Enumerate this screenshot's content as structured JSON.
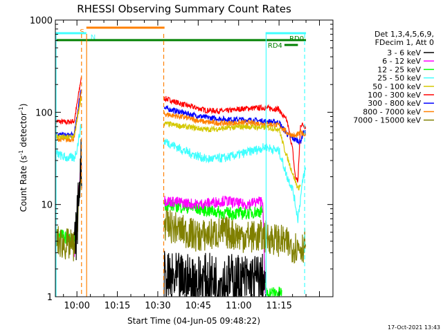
{
  "chart_data": {
    "type": "line",
    "title": "RHESSI Observing Summary Count Rates",
    "xlabel": "Start Time (04-Jun-05 09:48:22)",
    "ylabel_main": "Count Rate (s",
    "ylabel_sup1": "-1",
    "ylabel_mid": " detector",
    "ylabel_sup2": "-1",
    "ylabel_end": ")",
    "xlim_min": [
      -8,
      95
    ],
    "ylim_log": [
      1,
      1000
    ],
    "y_ticks": [
      {
        "v": 1,
        "label": "1"
      },
      {
        "v": 10,
        "label": "10"
      },
      {
        "v": 100,
        "label": "100"
      },
      {
        "v": 1000,
        "label": "1000"
      }
    ],
    "x_ticks": [
      {
        "t": 0,
        "label": "10:00"
      },
      {
        "t": 15,
        "label": "10:15"
      },
      {
        "t": 30,
        "label": "10:30"
      },
      {
        "t": 45,
        "label": "10:45"
      },
      {
        "t": 60,
        "label": "11:00"
      },
      {
        "t": 75,
        "label": "11:15"
      }
    ],
    "legend_header": [
      "Det 1,3,4,5,6,9,",
      "FDecim 1, Att 0"
    ],
    "legend": [
      {
        "label": "3 - 6 keV",
        "color": "#000000"
      },
      {
        "label": "6 - 12 keV",
        "color": "#ff00ff"
      },
      {
        "label": "12 - 25 keV",
        "color": "#00ff00"
      },
      {
        "label": "25 - 50 keV",
        "color": "#40ffff"
      },
      {
        "label": "50 - 100 keV",
        "color": "#d4c800"
      },
      {
        "label": "100 - 300 keV",
        "color": "#ff0000"
      },
      {
        "label": "300 - 800 keV",
        "color": "#0000ff"
      },
      {
        "label": "800 - 7000 keV",
        "color": "#ff8000"
      },
      {
        "label": "7000 - 15000 keV",
        "color": "#808000"
      }
    ],
    "flags": [
      {
        "label": "S",
        "color": "#ff8000",
        "t0": 3.5,
        "t1": 32.5,
        "y": 40
      },
      {
        "label": "N",
        "color": "#40ffff",
        "t0": -8,
        "t1": 3.5,
        "y": 48
      },
      {
        "label": "",
        "color": "#40ffff",
        "t0": 70,
        "t1": 85,
        "y": 48
      },
      {
        "label": "RD0",
        "color": "#008000",
        "t0": -8,
        "t1": 85,
        "y": 58
      },
      {
        "label": "RD4",
        "color": "#008000",
        "t0": 77,
        "t1": 82,
        "y": 65
      }
    ],
    "vlines": [
      {
        "t": -8.2,
        "color": "#40ffff",
        "dash": false
      },
      {
        "t": 1.7,
        "color": "#ff8000",
        "dash": true
      },
      {
        "t": 3.6,
        "color": "#ff8000",
        "dash": false
      },
      {
        "t": 32.2,
        "color": "#ff8000",
        "dash": true
      },
      {
        "t": 70.2,
        "color": "#40ffff",
        "dash": false
      },
      {
        "t": 84.5,
        "color": "#40ffff",
        "dash": true
      }
    ],
    "series": [
      {
        "name": "100 - 300 keV",
        "color": "#ff0000",
        "noise": 0.03,
        "points": [
          [
            -8,
            80
          ],
          [
            -4,
            78
          ],
          [
            -1,
            80
          ],
          [
            0,
            120
          ],
          [
            1.5,
            230
          ],
          [
            33,
            140
          ],
          [
            40,
            120
          ],
          [
            48,
            105
          ],
          [
            55,
            103
          ],
          [
            62,
            110
          ],
          [
            70,
            112
          ],
          [
            75,
            108
          ],
          [
            76,
            95
          ],
          [
            78,
            80
          ],
          [
            80,
            40
          ],
          [
            81,
            20
          ],
          [
            82,
            18
          ],
          [
            83,
            75
          ],
          [
            85,
            70
          ]
        ]
      },
      {
        "name": "300 - 800 keV",
        "color": "#0000ff",
        "noise": 0.03,
        "points": [
          [
            -8,
            58
          ],
          [
            -4,
            56
          ],
          [
            -1,
            57
          ],
          [
            0,
            90
          ],
          [
            1.5,
            180
          ],
          [
            33,
            110
          ],
          [
            40,
            98
          ],
          [
            48,
            88
          ],
          [
            55,
            84
          ],
          [
            62,
            83
          ],
          [
            70,
            80
          ],
          [
            75,
            78
          ],
          [
            76,
            70
          ],
          [
            78,
            58
          ],
          [
            80,
            52
          ],
          [
            83,
            48
          ],
          [
            84,
            60
          ],
          [
            85,
            60
          ]
        ]
      },
      {
        "name": "800 - 7000 keV",
        "color": "#ff8000",
        "noise": 0.03,
        "points": [
          [
            -8,
            52
          ],
          [
            -4,
            50
          ],
          [
            -1,
            52
          ],
          [
            0,
            80
          ],
          [
            1.5,
            160
          ],
          [
            33,
            95
          ],
          [
            40,
            88
          ],
          [
            48,
            78
          ],
          [
            55,
            76
          ],
          [
            62,
            77
          ],
          [
            70,
            75
          ],
          [
            75,
            72
          ],
          [
            76,
            68
          ],
          [
            78,
            60
          ],
          [
            81,
            55
          ],
          [
            83,
            60
          ],
          [
            85,
            58
          ]
        ]
      },
      {
        "name": "50 - 100 keV",
        "color": "#d4c800",
        "noise": 0.03,
        "points": [
          [
            -8,
            55
          ],
          [
            -4,
            53
          ],
          [
            -1,
            55
          ],
          [
            0,
            80
          ],
          [
            1.5,
            140
          ],
          [
            33,
            75
          ],
          [
            40,
            70
          ],
          [
            48,
            65
          ],
          [
            55,
            67
          ],
          [
            62,
            70
          ],
          [
            70,
            68
          ],
          [
            75,
            66
          ],
          [
            77,
            40
          ],
          [
            80,
            22
          ],
          [
            81,
            18
          ],
          [
            82,
            15
          ],
          [
            83,
            16
          ]
        ]
      },
      {
        "name": "25 - 50 keV",
        "color": "#40ffff",
        "noise": 0.05,
        "points": [
          [
            -8,
            36
          ],
          [
            -4,
            32
          ],
          [
            -1,
            32
          ],
          [
            0,
            40
          ],
          [
            1.5,
            70
          ],
          [
            33,
            48
          ],
          [
            40,
            38
          ],
          [
            48,
            31
          ],
          [
            55,
            32
          ],
          [
            62,
            36
          ],
          [
            70,
            42
          ],
          [
            75,
            38
          ],
          [
            78,
            20
          ],
          [
            80,
            15
          ],
          [
            82,
            7
          ],
          [
            84,
            20
          ],
          [
            85,
            25
          ]
        ]
      },
      {
        "name": "12 - 25 keV",
        "color": "#00ff00",
        "noise": 0.07,
        "points": [
          [
            -8,
            5
          ],
          [
            -1,
            4
          ],
          [
            1.5,
            20
          ],
          [
            33,
            10
          ],
          [
            45,
            9
          ],
          [
            55,
            8
          ],
          [
            62,
            8
          ],
          [
            69,
            8.5
          ],
          [
            70,
            1.1
          ],
          [
            75,
            1.1
          ],
          [
            76,
            1.1
          ]
        ]
      },
      {
        "name": "6 - 12 keV",
        "color": "#ff00ff",
        "noise": 0.06,
        "points": [
          [
            -1,
            2.5
          ],
          [
            0,
            7
          ],
          [
            1.5,
            28
          ],
          [
            33,
            11
          ],
          [
            45,
            10
          ],
          [
            55,
            11
          ],
          [
            62,
            10
          ],
          [
            69,
            11
          ],
          [
            69.8,
            1.05
          ]
        ]
      },
      {
        "name": "7000 - 15000 keV",
        "color": "#808000",
        "noise": 0.18,
        "points": [
          [
            -8,
            4
          ],
          [
            -1,
            3.5
          ],
          [
            0,
            6
          ],
          [
            1.5,
            20
          ],
          [
            33,
            6
          ],
          [
            45,
            4.5
          ],
          [
            55,
            5
          ],
          [
            62,
            4.5
          ],
          [
            70,
            4.5
          ],
          [
            76,
            4
          ],
          [
            80,
            3.5
          ],
          [
            84,
            3.5
          ],
          [
            85,
            4
          ]
        ]
      },
      {
        "name": "3 - 6 keV",
        "color": "#000000",
        "noise": 0.3,
        "points": [
          [
            -1,
            3
          ],
          [
            0,
            6
          ],
          [
            1.5,
            28
          ],
          [
            33,
            1.5
          ],
          [
            45,
            1.5
          ],
          [
            55,
            1.5
          ],
          [
            62,
            1.5
          ],
          [
            69.5,
            1.5
          ],
          [
            70,
            1.05
          ]
        ]
      }
    ],
    "footer": "17-Oct-2021 13:43"
  }
}
